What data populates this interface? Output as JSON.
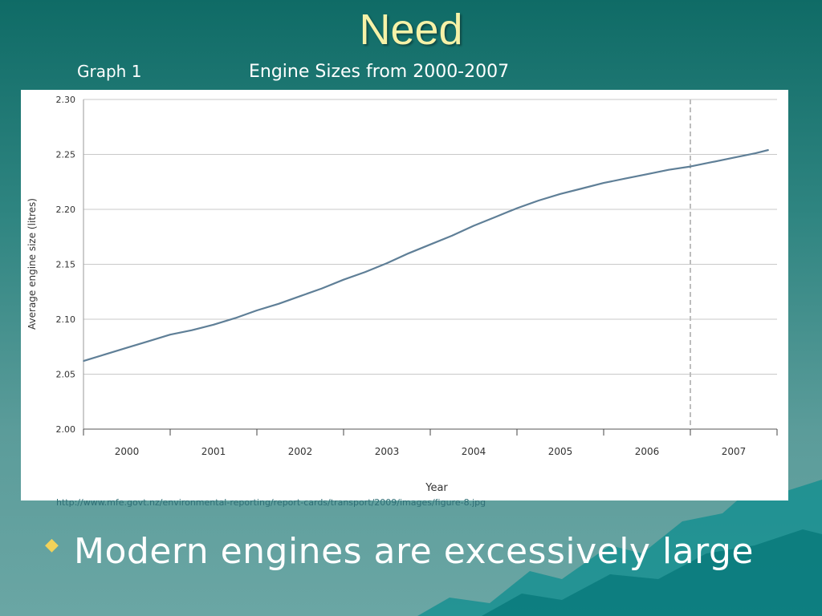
{
  "slide": {
    "title": "Need",
    "graph_label": "Graph 1",
    "source_url": "http://www.mfe.govt.nz/environmental-reporting/report-cards/transport/2009/images/figure-8.jpg",
    "bullet_text": "Modern engines are excessively large"
  },
  "chart_data": {
    "type": "line",
    "title": "Engine Sizes from 2000-2007",
    "xlabel": "Year",
    "ylabel": "Average engine size (litres)",
    "categories": [
      "2000",
      "2001",
      "2002",
      "2003",
      "2004",
      "2005",
      "2006",
      "2007"
    ],
    "yticks": [
      "2.00",
      "2.05",
      "2.10",
      "2.15",
      "2.20",
      "2.25",
      "2.30"
    ],
    "ylim": [
      2.0,
      2.3
    ],
    "x": [
      1999.5,
      1999.75,
      2000.0,
      2000.25,
      2000.5,
      2000.75,
      2001.0,
      2001.25,
      2001.5,
      2001.75,
      2002.0,
      2002.25,
      2002.5,
      2002.75,
      2003.0,
      2003.25,
      2003.5,
      2003.75,
      2004.0,
      2004.25,
      2004.5,
      2004.75,
      2005.0,
      2005.25,
      2005.5,
      2005.75,
      2006.0,
      2006.25,
      2006.5,
      2006.75,
      2007.0,
      2007.25,
      2007.4
    ],
    "values": [
      2.062,
      2.068,
      2.074,
      2.08,
      2.086,
      2.09,
      2.095,
      2.101,
      2.108,
      2.114,
      2.121,
      2.128,
      2.136,
      2.143,
      2.151,
      2.16,
      2.168,
      2.176,
      2.185,
      2.193,
      2.201,
      2.208,
      2.214,
      2.219,
      2.224,
      2.228,
      2.232,
      2.236,
      2.239,
      2.243,
      2.247,
      2.251,
      2.254
    ],
    "divider_x": 2006.5,
    "grid": true,
    "line_color": "#5f7f97",
    "divider_color": "#bdbdbd"
  }
}
